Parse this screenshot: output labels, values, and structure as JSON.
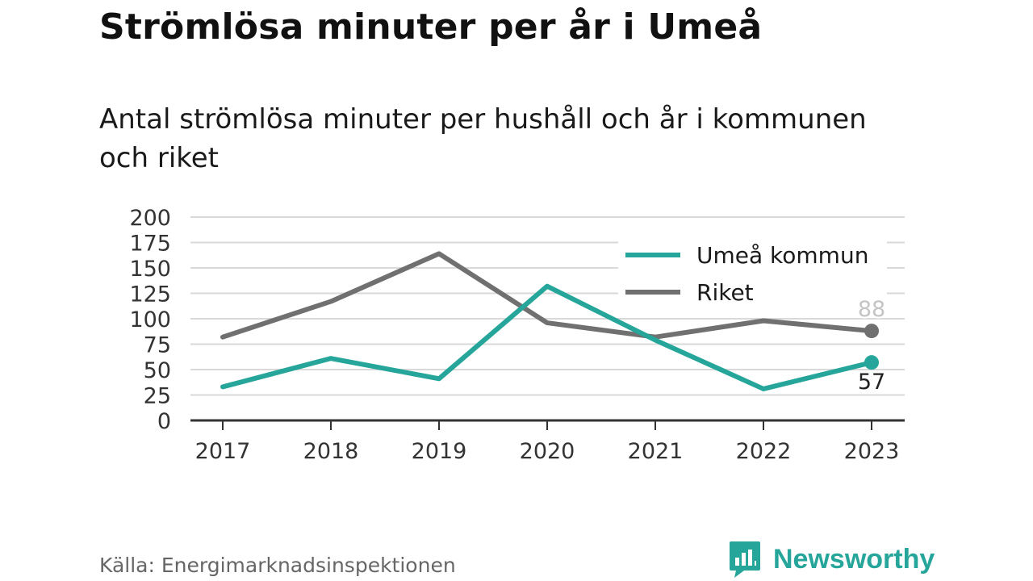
{
  "title": "Strömlösa minuter per år i Umeå",
  "subtitle": "Antal strömlösa minuter per hushåll och år i kommunen och riket",
  "source": "Källa: Energimarknadsinspektionen",
  "brand": "Newsworthy",
  "colors": {
    "accent": "#26a69a",
    "secondary": "#707070",
    "grid": "#d9d9d9",
    "axis": "#333333"
  },
  "chart_data": {
    "type": "line",
    "title": "Strömlösa minuter per år i Umeå",
    "subtitle": "Antal strömlösa minuter per hushåll och år i kommunen och riket",
    "xlabel": "",
    "ylabel": "",
    "x": [
      "2017",
      "2018",
      "2019",
      "2020",
      "2021",
      "2022",
      "2023"
    ],
    "ylim": [
      0,
      200
    ],
    "yticks": [
      0,
      25,
      50,
      75,
      100,
      125,
      150,
      175,
      200
    ],
    "grid": true,
    "legend": "top-right",
    "series": [
      {
        "name": "Umeå kommun",
        "color": "#26a69a",
        "values": [
          33,
          61,
          41,
          132,
          79,
          31,
          57
        ],
        "end_label": "57"
      },
      {
        "name": "Riket",
        "color": "#707070",
        "values": [
          82,
          117,
          164,
          96,
          82,
          98,
          88
        ],
        "end_label": "88"
      }
    ]
  }
}
